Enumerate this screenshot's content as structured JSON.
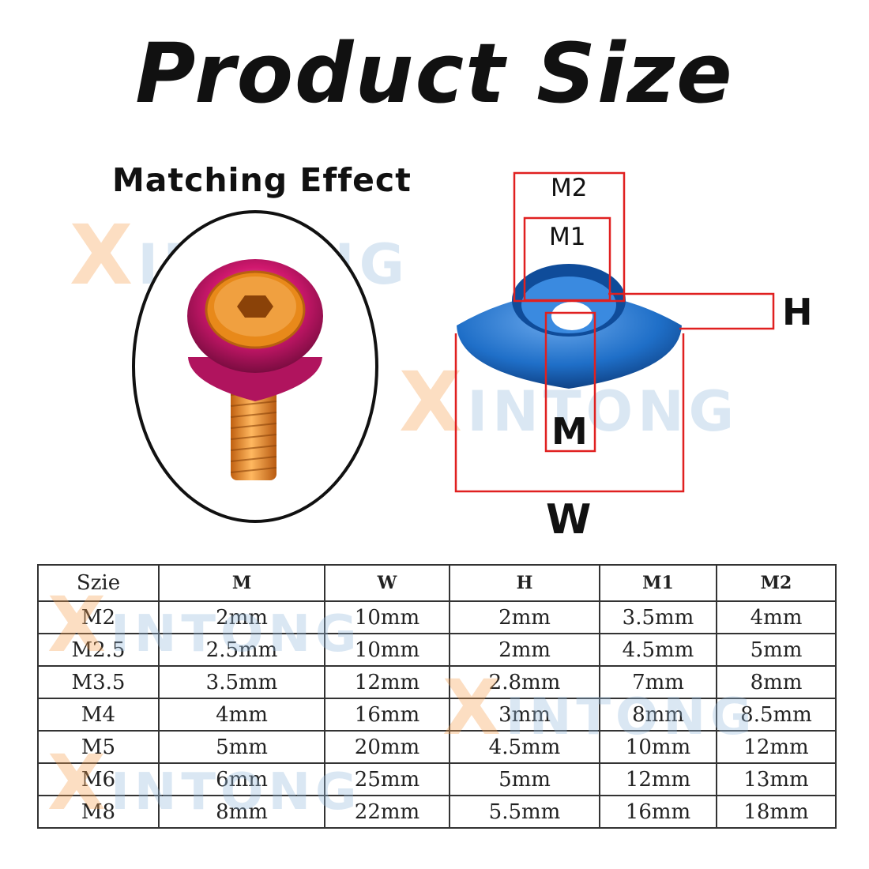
{
  "title": "Product Size",
  "matching_label": "Matching Effect",
  "watermark": {
    "first": "X",
    "rest": "INTONG"
  },
  "dimensions": {
    "m2": "M2",
    "m1": "M1",
    "h": "H",
    "m": "M",
    "w": "W"
  },
  "colors": {
    "washer_pink": "#d0186e",
    "screw_orange": "#e8891a",
    "washer_blue": "#1f6fc8",
    "dim_red": "#e02020"
  },
  "table": {
    "headers": [
      "Szie",
      "M",
      "W",
      "H",
      "M1",
      "M2"
    ],
    "rows": [
      [
        "M2",
        "2mm",
        "10mm",
        "2mm",
        "3.5mm",
        "4mm"
      ],
      [
        "M2.5",
        "2.5mm",
        "10mm",
        "2mm",
        "4.5mm",
        "5mm"
      ],
      [
        "M3.5",
        "3.5mm",
        "12mm",
        "2.8mm",
        "7mm",
        "8mm"
      ],
      [
        "M4",
        "4mm",
        "16mm",
        "3mm",
        "8mm",
        "8.5mm"
      ],
      [
        "M5",
        "5mm",
        "20mm",
        "4.5mm",
        "10mm",
        "12mm"
      ],
      [
        "M6",
        "6mm",
        "25mm",
        "5mm",
        "12mm",
        "13mm"
      ],
      [
        "M8",
        "8mm",
        "22mm",
        "5.5mm",
        "16mm",
        "18mm"
      ]
    ]
  }
}
